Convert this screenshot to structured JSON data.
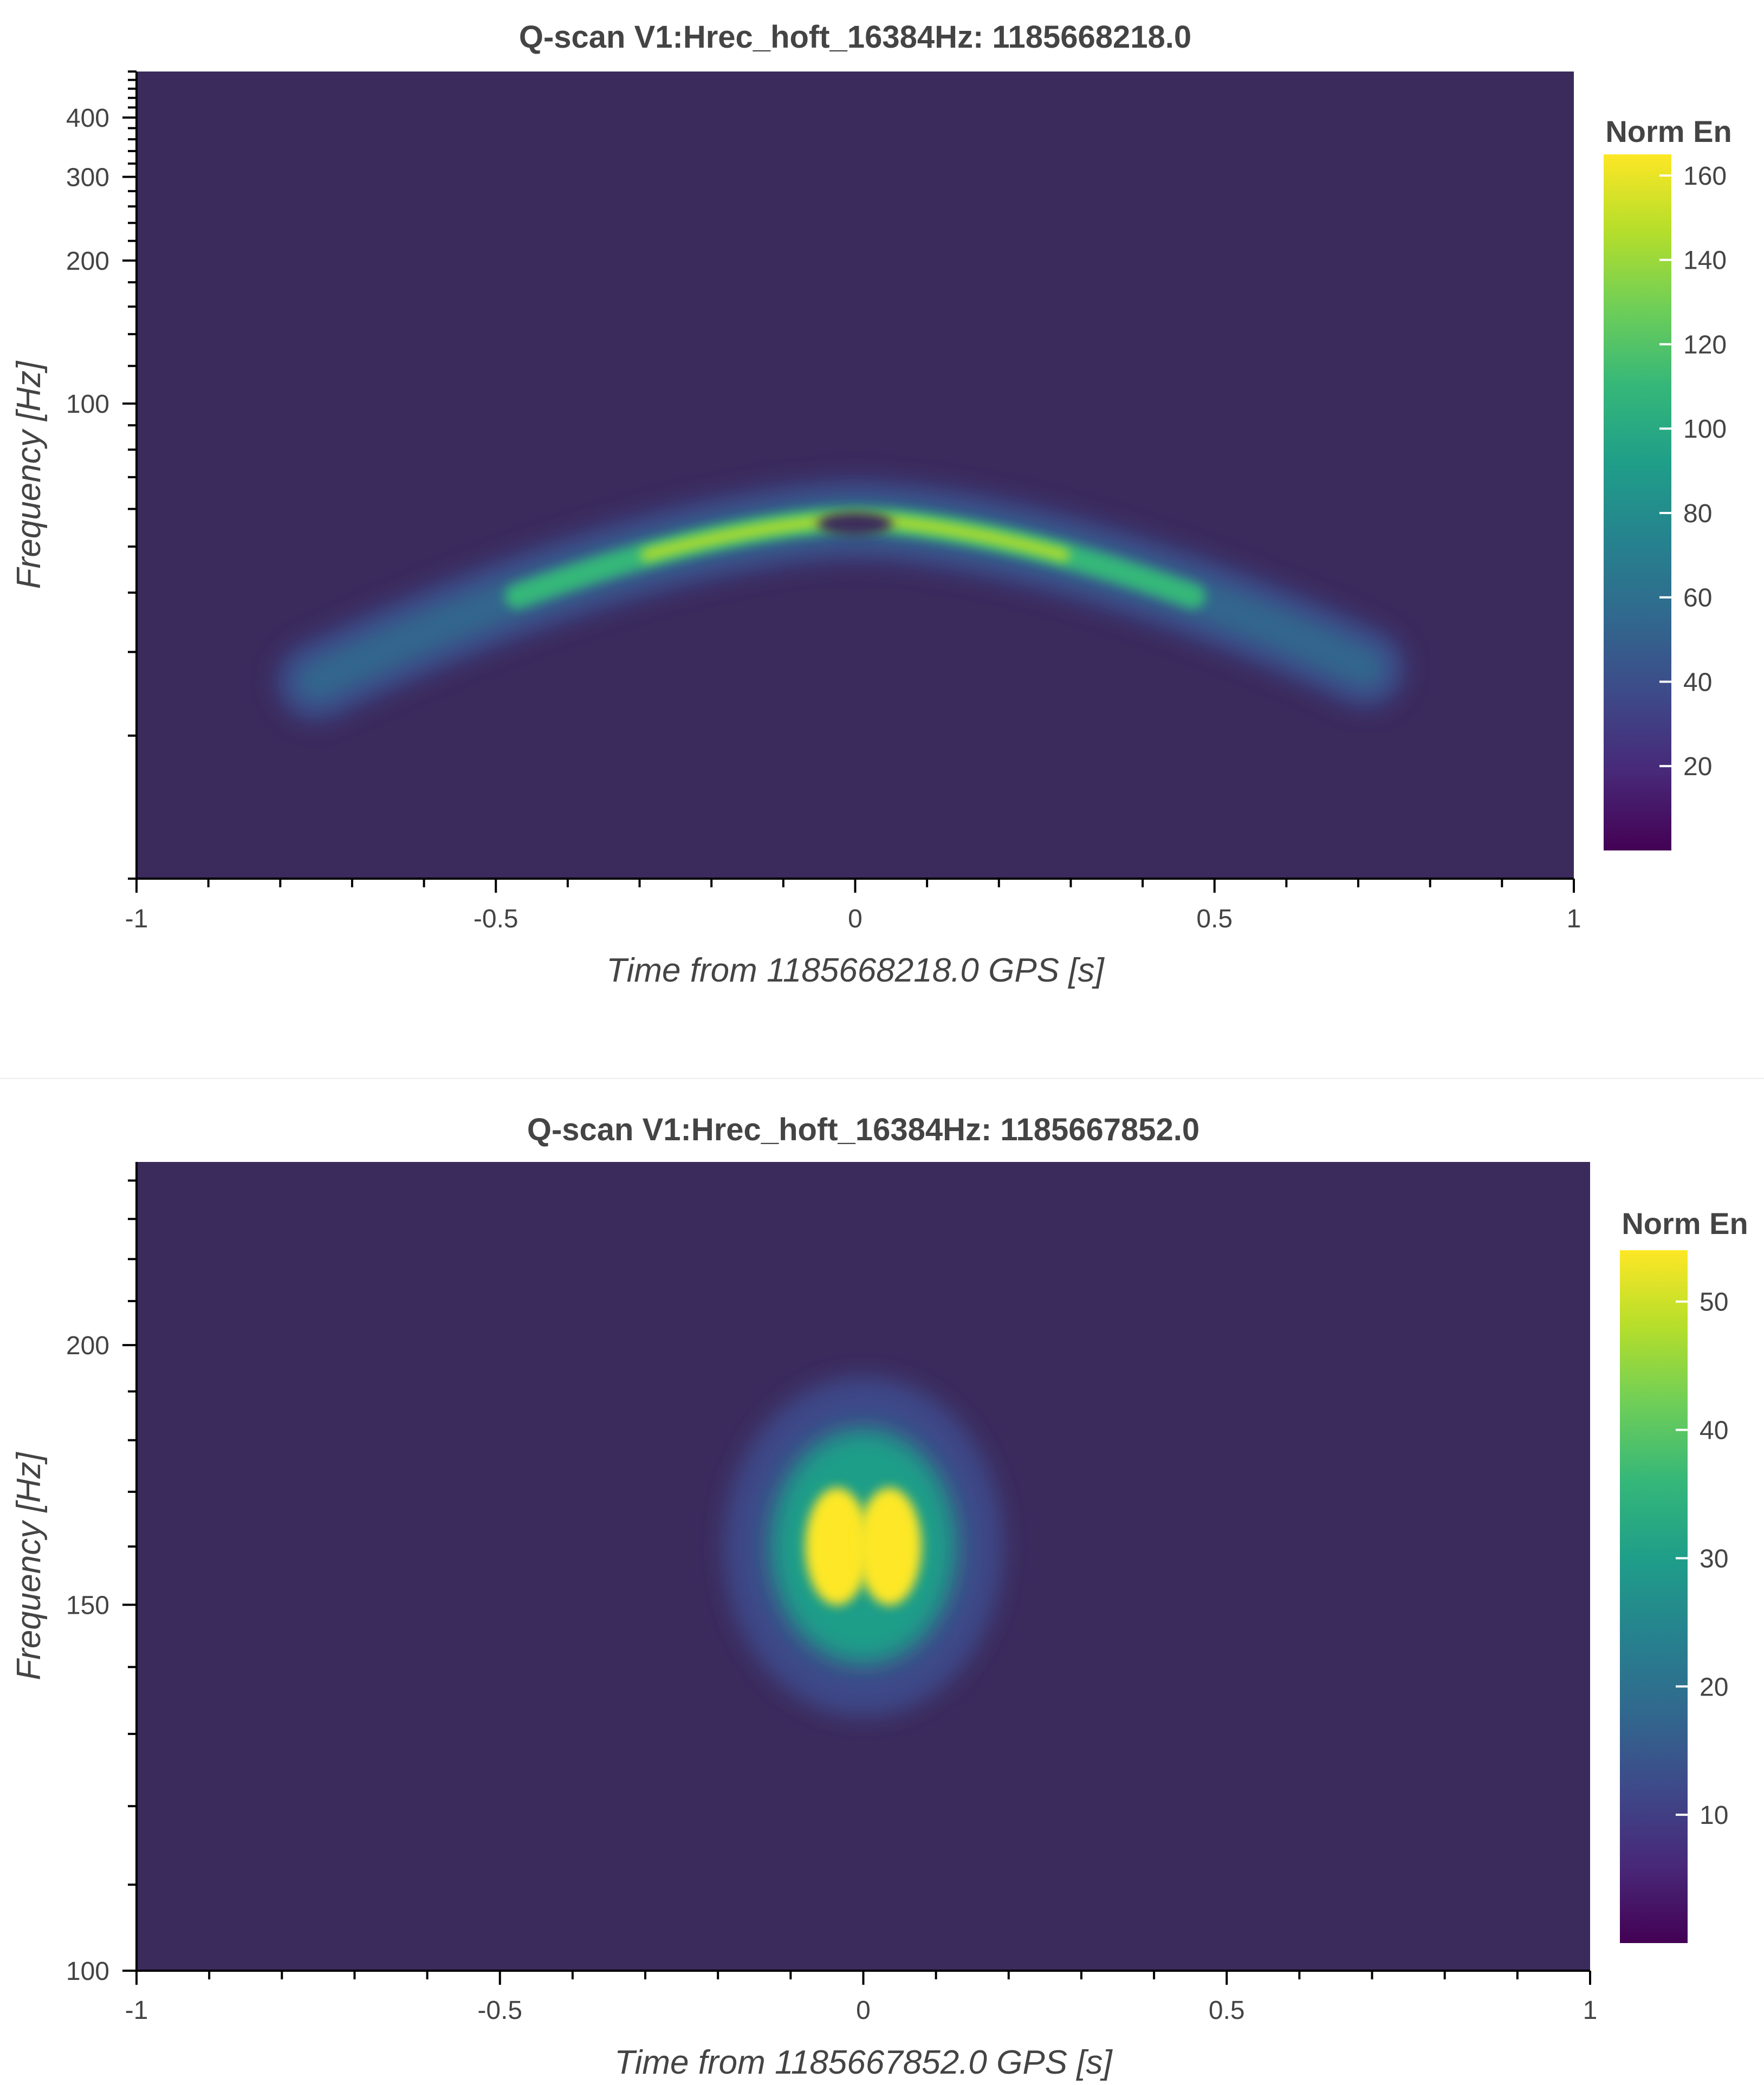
{
  "colormap": [
    "#440154",
    "#482878",
    "#3e4989",
    "#31688e",
    "#26828e",
    "#1f9e89",
    "#35b779",
    "#6ece58",
    "#b5de2b",
    "#fde725"
  ],
  "background_color": "#3b2a5c",
  "chart_data": [
    {
      "type": "heatmap",
      "title": "Q-scan V1:Hrec_hoft_16384Hz: 1185668218.0",
      "xlabel": "Time from 1185668218.0 GPS [s]",
      "ylabel": "Frequency [Hz]",
      "xlim": [
        -1,
        1
      ],
      "ylim": [
        10,
        500
      ],
      "yscale": "log",
      "xticks": [
        -1,
        -0.5,
        0,
        0.5,
        1
      ],
      "xtick_labels": [
        "-1",
        "-0.5",
        "0",
        "0.5",
        "1"
      ],
      "yticks": [
        100,
        200,
        300,
        400
      ],
      "ytick_labels": [
        "100",
        "200",
        "300",
        "400"
      ],
      "colorbar": {
        "label": "Norm En",
        "range": [
          0,
          165
        ],
        "ticks": [
          20,
          40,
          60,
          80,
          100,
          120,
          140,
          160
        ],
        "tick_labels": [
          "20",
          "40",
          "60",
          "80",
          "100",
          "120",
          "140",
          "160"
        ]
      },
      "features": [
        {
          "kind": "chirp-arch",
          "t_start": -0.75,
          "t_end": 0.72,
          "f_edge": 26,
          "f_peak": 57,
          "peak_energy": 165
        }
      ]
    },
    {
      "type": "heatmap",
      "title": "Q-scan V1:Hrec_hoft_16384Hz: 1185667852.0",
      "xlabel": "Time from 1185667852.0 GPS [s]",
      "ylabel": "Frequency [Hz]",
      "xlim": [
        -1,
        1
      ],
      "ylim": [
        100,
        245
      ],
      "yscale": "log",
      "xticks": [
        -1,
        -0.5,
        0,
        0.5,
        1
      ],
      "xtick_labels": [
        "-1",
        "-0.5",
        "0",
        "0.5",
        "1"
      ],
      "yticks": [
        100,
        150,
        200
      ],
      "ytick_labels": [
        "100",
        "150",
        "200"
      ],
      "colorbar": {
        "label": "Norm En",
        "range": [
          0,
          54
        ],
        "ticks": [
          10,
          20,
          30,
          40,
          50
        ],
        "tick_labels": [
          "10",
          "20",
          "30",
          "40",
          "50"
        ]
      },
      "features": [
        {
          "kind": "blob",
          "t_center": 0.0,
          "f_center": 160,
          "t_width": 0.08,
          "f_width": 12,
          "peak_energy": 54
        }
      ]
    }
  ]
}
